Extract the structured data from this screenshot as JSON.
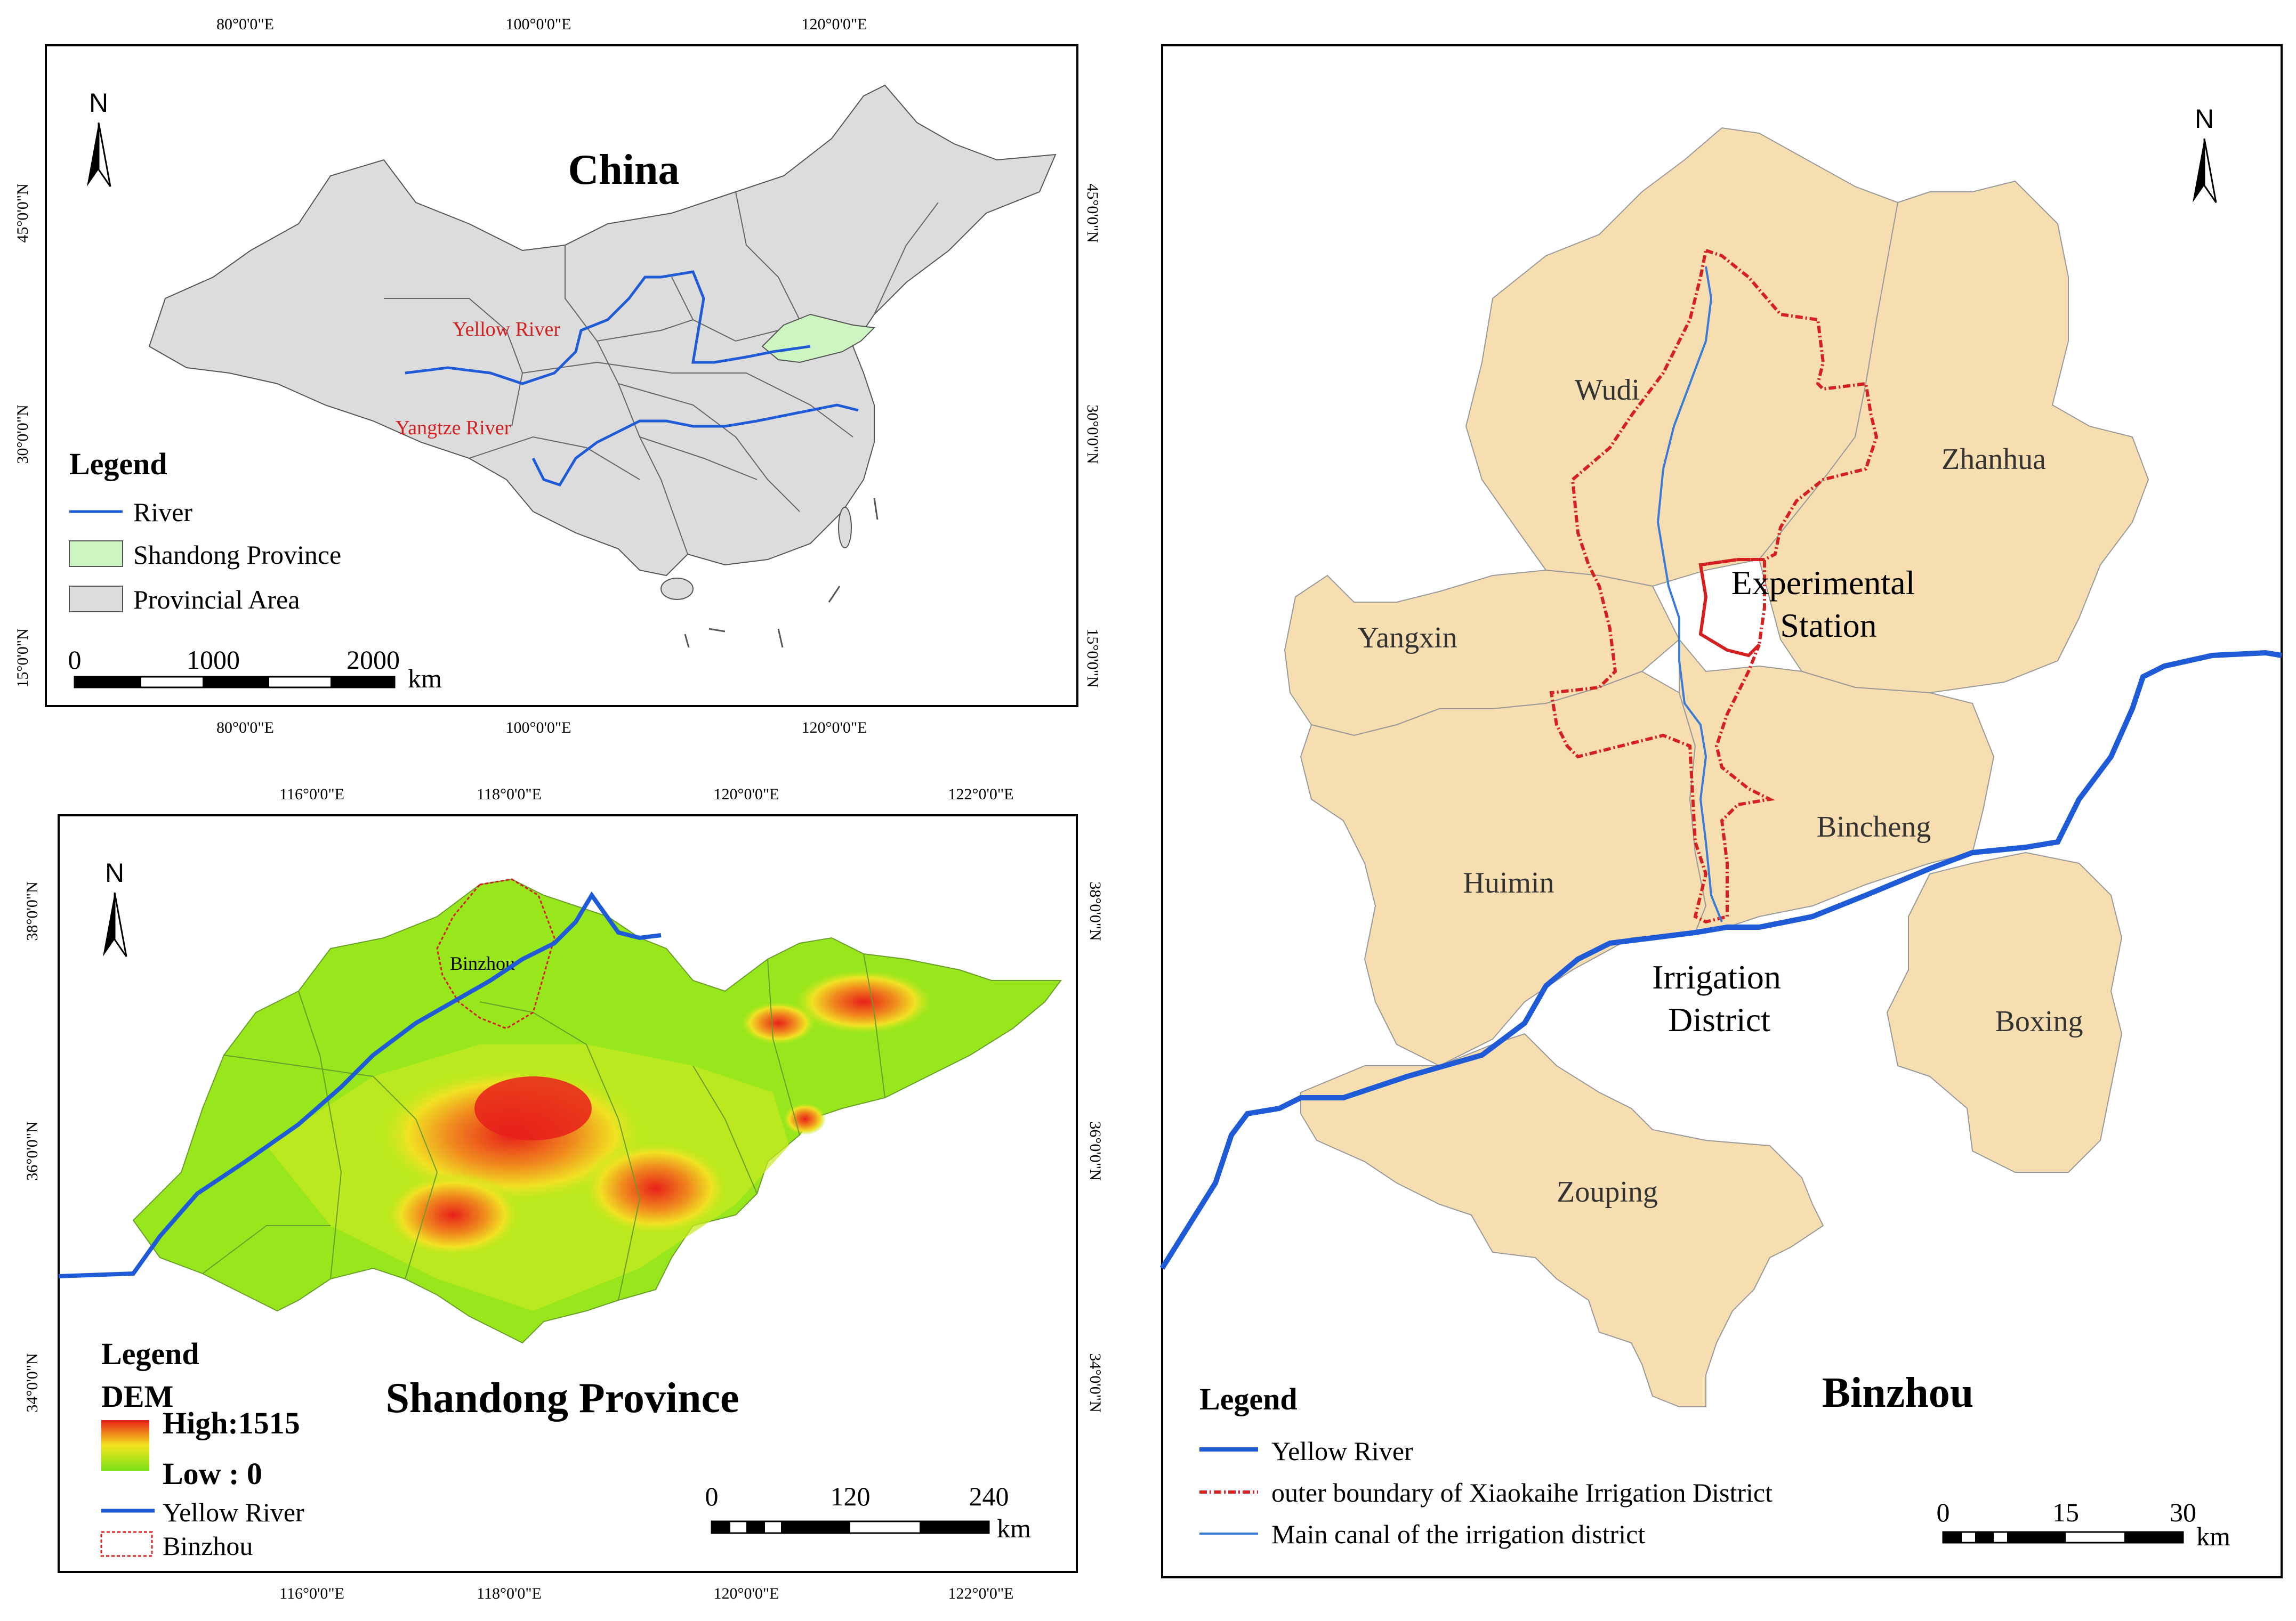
{
  "china_map": {
    "title": "China",
    "top_ticks": [
      "80°0'0\"E",
      "100°0'0\"E",
      "120°0'0\"E"
    ],
    "bottom_ticks": [
      "80°0'0\"E",
      "100°0'0\"E",
      "120°0'0\"E"
    ],
    "left_ticks": [
      "45°0'0\"N",
      "30°0'0\"N",
      "15°0'0\"N"
    ],
    "right_ticks": [
      "45°0'0\"N",
      "30°0'0\"N",
      "15°0'0\"N"
    ],
    "north": "N",
    "rivers": [
      "Yellow River",
      "Yangtze River"
    ],
    "legend": {
      "heading": "Legend",
      "items": [
        "River",
        "Shandong Province",
        "Provincial Area"
      ]
    },
    "scale": {
      "labels": [
        "0",
        "1000",
        "2000"
      ],
      "unit": "km"
    },
    "colors": {
      "province": "#dcdcdc",
      "shandong": "#ccf5c2",
      "river": "#1f5bd6",
      "river_label": "#d42020"
    }
  },
  "shandong_map": {
    "title": "Shandong Province",
    "top_ticks": [
      "116°0'0\"E",
      "118°0'0\"E",
      "120°0'0\"E",
      "122°0'0\"E"
    ],
    "bottom_ticks": [
      "116°0'0\"E",
      "118°0'0\"E",
      "120°0'0\"E",
      "122°0'0\"E"
    ],
    "left_ticks": [
      "38°0'0\"N",
      "36°0'0\"N",
      "34°0'0\"N"
    ],
    "right_ticks": [
      "38°0'0\"N",
      "36°0'0\"N",
      "34°0'0\"N"
    ],
    "north": "N",
    "binzhou_label": "Binzhou",
    "legend": {
      "heading": "Legend",
      "dem_heading": "DEM",
      "high": "High:1515",
      "low": "Low : 0",
      "items": [
        "Yellow River",
        "Binzhou"
      ]
    },
    "scale": {
      "labels": [
        "0",
        "120",
        "240"
      ],
      "unit": "km"
    }
  },
  "binzhou_map": {
    "title": "Binzhou",
    "north": "N",
    "counties": [
      "Wudi",
      "Zhanhua",
      "Yangxin",
      "Huimin",
      "Bincheng",
      "Boxing",
      "Zouping"
    ],
    "station_label": [
      "Experimental",
      "Station"
    ],
    "district_label": [
      "Irrigation",
      "District"
    ],
    "legend": {
      "heading": "Legend",
      "items": [
        "Yellow River",
        "outer boundary of Xiaokaihe Irrigation District",
        "Main canal of the irrigation district"
      ]
    },
    "scale": {
      "labels": [
        "0",
        "15",
        "30"
      ],
      "unit": "km"
    },
    "colors": {
      "county": "#f7deb0",
      "yellow_river": "#1f5bd6",
      "boundary": "#d42020",
      "canal": "#3a7bd5"
    }
  }
}
